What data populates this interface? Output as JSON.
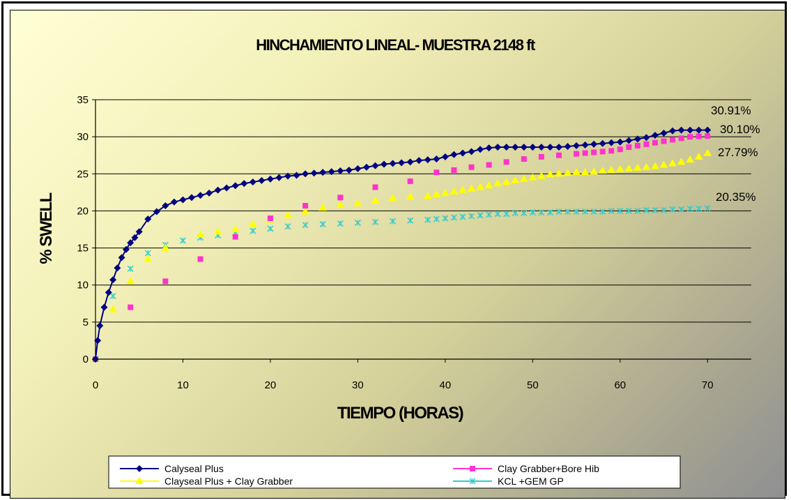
{
  "chart_data": {
    "type": "line",
    "title": "HINCHAMIENTO LINEAL- MUESTRA 2148 ft",
    "xlabel": "TIEMPO (HORAS)",
    "ylabel": "% SWELL",
    "xlim": [
      0,
      75
    ],
    "ylim": [
      0,
      35
    ],
    "xticks": [
      0,
      10,
      20,
      30,
      40,
      50,
      60,
      70
    ],
    "yticks": [
      0,
      5,
      10,
      15,
      20,
      25,
      30,
      35
    ],
    "grid": "horizontal",
    "legend_position": "bottom",
    "series": [
      {
        "name": "Calyseal Plus",
        "color": "#000080",
        "marker": "diamond",
        "line": true,
        "x": [
          0,
          0.25,
          0.5,
          1,
          1.5,
          2,
          2.5,
          3,
          3.5,
          4,
          4.5,
          5,
          6,
          7,
          8,
          9,
          10,
          11,
          12,
          13,
          14,
          15,
          16,
          17,
          18,
          19,
          20,
          21,
          22,
          23,
          24,
          25,
          26,
          27,
          28,
          29,
          30,
          31,
          32,
          33,
          34,
          35,
          36,
          37,
          38,
          39,
          40,
          41,
          42,
          43,
          44,
          45,
          46,
          47,
          48,
          49,
          50,
          51,
          52,
          53,
          54,
          55,
          56,
          57,
          58,
          59,
          60,
          61,
          62,
          63,
          64,
          65,
          66,
          67,
          68,
          69,
          70
        ],
        "y": [
          0,
          2.5,
          4.5,
          7,
          9,
          10.7,
          12.3,
          13.7,
          14.8,
          15.7,
          16.4,
          17.2,
          18.9,
          19.9,
          20.7,
          21.2,
          21.5,
          21.8,
          22.1,
          22.4,
          22.8,
          23.1,
          23.4,
          23.7,
          23.9,
          24.1,
          24.3,
          24.5,
          24.7,
          24.8,
          25.0,
          25.1,
          25.2,
          25.3,
          25.4,
          25.5,
          25.7,
          25.9,
          26.1,
          26.3,
          26.4,
          26.5,
          26.6,
          26.8,
          26.9,
          27.0,
          27.3,
          27.6,
          27.8,
          28.0,
          28.3,
          28.5,
          28.6,
          28.6,
          28.6,
          28.6,
          28.6,
          28.6,
          28.6,
          28.6,
          28.7,
          28.8,
          28.9,
          29.0,
          29.1,
          29.2,
          29.3,
          29.5,
          29.7,
          29.9,
          30.2,
          30.5,
          30.8,
          30.9,
          30.9,
          30.9,
          30.91
        ]
      },
      {
        "name": "Clay Grabber+Bore Hib",
        "color": "#ff33cc",
        "marker": "square",
        "line": false,
        "x": [
          0,
          4,
          8,
          12,
          16,
          20,
          24,
          28,
          32,
          36,
          39,
          41,
          43,
          45,
          47,
          49,
          51,
          53,
          55,
          56,
          57,
          58,
          59,
          60,
          61,
          62,
          63,
          64,
          65,
          66,
          67,
          68,
          69,
          70
        ],
        "y": [
          0,
          7,
          10.5,
          13.5,
          16.5,
          19,
          20.7,
          21.8,
          23.2,
          24,
          25.2,
          25.5,
          25.9,
          26.2,
          26.6,
          27,
          27.3,
          27.5,
          27.7,
          27.8,
          27.9,
          28,
          28.1,
          28.3,
          28.6,
          28.8,
          29,
          29.2,
          29.4,
          29.6,
          29.8,
          30,
          30.05,
          30.1
        ]
      },
      {
        "name": "Clayseal Plus + Clay Grabber",
        "color": "#ffff00",
        "marker": "triangle",
        "line": false,
        "x": [
          0,
          2,
          4,
          6,
          8,
          12,
          14,
          16,
          18,
          20,
          22,
          24,
          26,
          28,
          30,
          32,
          34,
          36,
          38,
          39,
          40,
          41,
          42,
          43,
          44,
          45,
          46,
          47,
          48,
          49,
          50,
          51,
          52,
          53,
          54,
          55,
          56,
          57,
          58,
          59,
          60,
          61,
          62,
          63,
          64,
          65,
          66,
          67,
          68,
          69,
          70
        ],
        "y": [
          0,
          6.7,
          10.5,
          13.5,
          15,
          16.8,
          17.2,
          17.5,
          18.2,
          18.8,
          19.4,
          19.9,
          20.4,
          20.8,
          21.0,
          21.4,
          21.7,
          21.9,
          22.0,
          22.2,
          22.4,
          22.6,
          22.8,
          23.0,
          23.2,
          23.4,
          23.7,
          23.9,
          24.1,
          24.3,
          24.5,
          24.7,
          24.9,
          25.0,
          25.1,
          25.2,
          25.2,
          25.3,
          25.4,
          25.5,
          25.6,
          25.7,
          25.8,
          25.9,
          26.0,
          26.2,
          26.4,
          26.6,
          26.9,
          27.3,
          27.79
        ]
      },
      {
        "name": "KCL +GEM GP",
        "color": "#33cccc",
        "marker": "star",
        "line": false,
        "x": [
          0,
          2,
          4,
          6,
          8,
          10,
          12,
          14,
          16,
          18,
          20,
          22,
          24,
          26,
          28,
          30,
          32,
          34,
          36,
          38,
          39,
          40,
          41,
          42,
          43,
          44,
          45,
          46,
          47,
          48,
          49,
          50,
          51,
          52,
          53,
          54,
          55,
          56,
          57,
          58,
          59,
          60,
          61,
          62,
          63,
          64,
          65,
          66,
          67,
          68,
          69,
          70
        ],
        "y": [
          0,
          8.5,
          12.2,
          14.3,
          15.4,
          16.0,
          16.4,
          16.7,
          17.0,
          17.3,
          17.6,
          17.9,
          18.1,
          18.2,
          18.3,
          18.4,
          18.5,
          18.6,
          18.7,
          18.8,
          18.9,
          19.0,
          19.1,
          19.2,
          19.3,
          19.4,
          19.5,
          19.6,
          19.6,
          19.7,
          19.7,
          19.8,
          19.8,
          19.8,
          19.9,
          19.9,
          19.9,
          19.9,
          19.9,
          19.9,
          20.0,
          20.0,
          20.0,
          20.0,
          20.1,
          20.1,
          20.1,
          20.2,
          20.2,
          20.3,
          20.3,
          20.35
        ]
      }
    ],
    "end_labels": [
      "30.91%",
      "30.10%",
      "27.79%",
      "20.35%"
    ]
  }
}
